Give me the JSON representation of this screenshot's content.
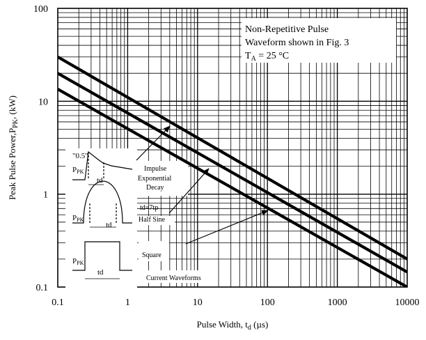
{
  "chart_data": {
    "type": "line",
    "xscale": "log",
    "yscale": "log",
    "xlim": [
      0.1,
      10000
    ],
    "ylim": [
      0.1,
      100
    ],
    "grid": true,
    "xlabel": {
      "main": "Pulse Width, t",
      "sub": "d",
      "unit": " (µs)"
    },
    "ylabel": {
      "main": "Peak Pulse Power,P",
      "sub": "PK",
      "unit": ",  (kW)"
    },
    "x_ticks": [
      {
        "value": 0.1,
        "label": "0.1"
      },
      {
        "value": 1,
        "label": "1"
      },
      {
        "value": 10,
        "label": "10"
      },
      {
        "value": 100,
        "label": "100"
      },
      {
        "value": 1000,
        "label": "1000"
      },
      {
        "value": 10000,
        "label": "10000"
      }
    ],
    "y_ticks": [
      {
        "value": 0.1,
        "label": "0.1"
      },
      {
        "value": 1,
        "label": "1"
      },
      {
        "value": 10,
        "label": "10"
      },
      {
        "value": 100,
        "label": "100"
      }
    ],
    "annotation": {
      "line1": "Non-Repetitive Pulse",
      "line2": "Waveform shown in Fig. 3",
      "line3_main": "T",
      "line3_sub": "A",
      "line3_rest": " = 25 °C"
    },
    "series": [
      {
        "x": [
          0.1,
          10000
        ],
        "y": [
          30,
          0.2
        ]
      },
      {
        "x": [
          0.1,
          10000
        ],
        "y": [
          20,
          0.145
        ]
      },
      {
        "x": [
          0.1,
          10000
        ],
        "y": [
          13.5,
          0.1
        ]
      }
    ],
    "series_labels": {
      "impulse_line1": "Impulse",
      "impulse_line2": "Exponential",
      "impulse_line3": "Decay",
      "halfsine_line1": "td=7tp",
      "halfsine_line2": "Half Sine",
      "square": "Square",
      "current_waveforms": "Current Waveforms"
    },
    "inset": {
      "half_label": "\"0.5\"",
      "ppk_main": "P",
      "ppk_sub": "PK",
      "td": "td"
    }
  }
}
